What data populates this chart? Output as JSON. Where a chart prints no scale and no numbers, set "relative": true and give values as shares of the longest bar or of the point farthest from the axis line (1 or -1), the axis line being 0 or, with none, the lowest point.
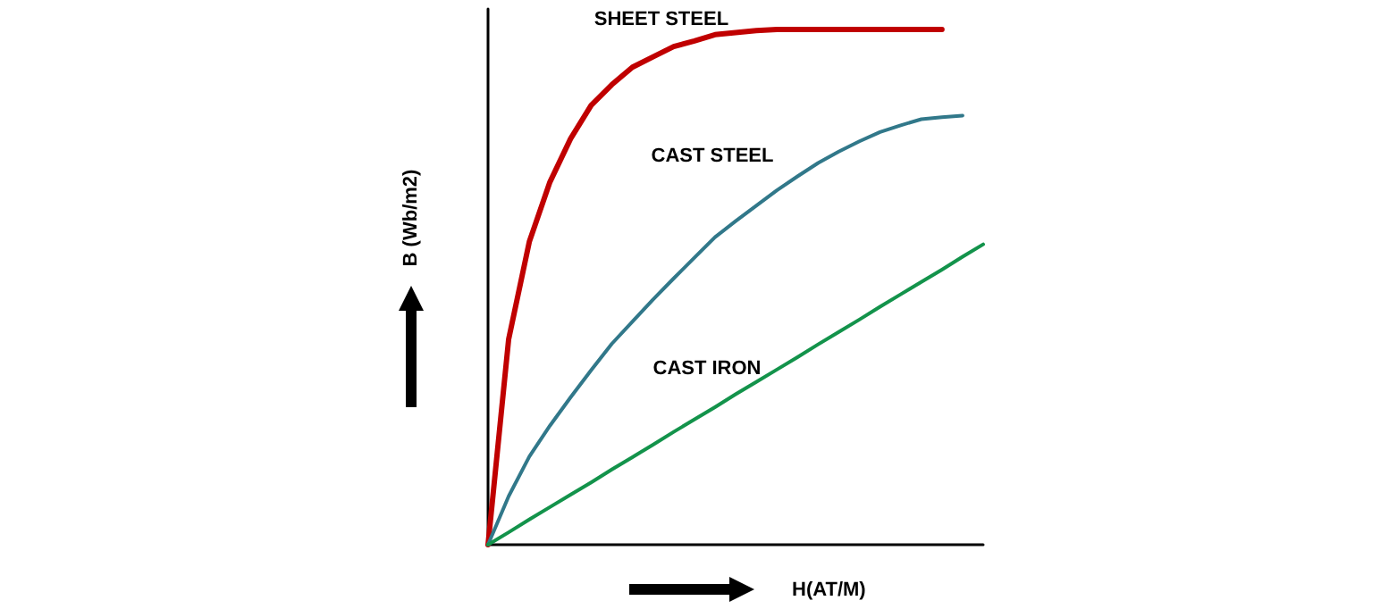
{
  "chart_data": {
    "type": "line",
    "relative": true,
    "xlabel": "H(AT/M)",
    "ylabel": "B (Wb/m2)",
    "tick_labels": false,
    "grid": false,
    "legend": false,
    "marker": "none",
    "line_style": "solid",
    "categories": [
      null,
      null,
      null,
      null,
      null,
      null,
      null,
      null,
      null,
      null,
      null,
      null,
      null,
      null,
      null,
      null,
      null,
      null,
      null,
      null,
      null,
      null,
      null,
      null,
      null
    ],
    "series": [
      {
        "name": "SHEET STEEL",
        "color": "#c00000",
        "values": [
          0,
          0.399,
          0.588,
          0.704,
          0.788,
          0.853,
          0.893,
          0.927,
          0.947,
          0.967,
          0.978,
          0.99,
          0.994,
          0.998,
          1,
          1,
          1,
          1,
          1,
          1,
          1,
          1,
          1,
          null,
          null
        ]
      },
      {
        "name": "CAST STEEL",
        "color": "#31788a",
        "values": [
          0,
          0.094,
          0.171,
          0.231,
          0.286,
          0.339,
          0.39,
          0.433,
          0.476,
          0.517,
          0.557,
          0.597,
          0.628,
          0.658,
          0.688,
          0.715,
          0.741,
          0.763,
          0.783,
          0.801,
          0.814,
          0.826,
          0.83,
          0.833,
          null
        ]
      },
      {
        "name": "CAST IRON",
        "color": "#13934b",
        "values": [
          0,
          0.024,
          0.049,
          0.073,
          0.097,
          0.121,
          0.146,
          0.17,
          0.194,
          0.219,
          0.243,
          0.267,
          0.292,
          0.316,
          0.34,
          0.364,
          0.389,
          0.413,
          0.437,
          0.462,
          0.486,
          0.51,
          0.534,
          0.559,
          0.583
        ]
      }
    ]
  }
}
